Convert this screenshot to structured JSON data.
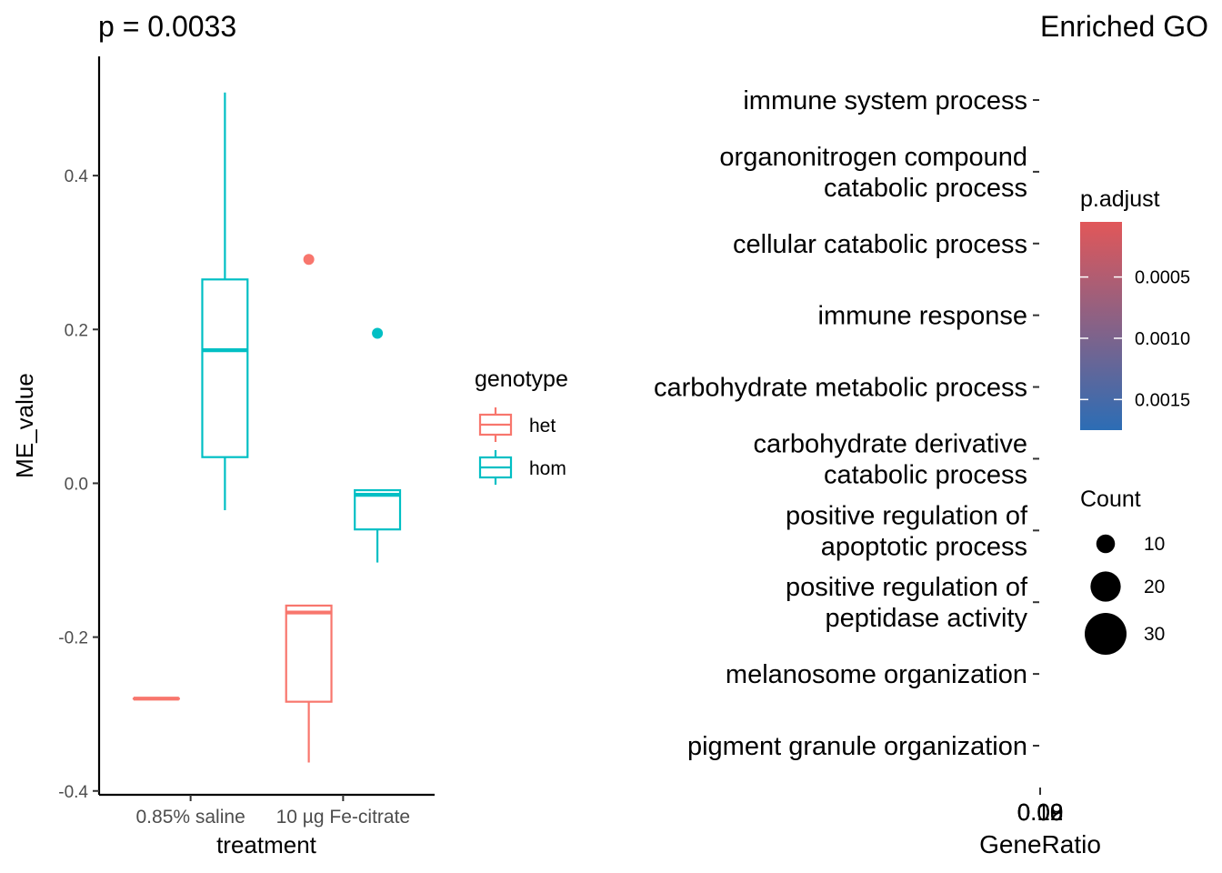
{
  "chart_data": [
    {
      "type": "boxplot",
      "title": "p = 0.0033",
      "xlabel": "treatment",
      "ylabel": "ME_value",
      "categories": [
        "0.85% saline",
        "10 µg Fe-citrate"
      ],
      "ylim": [
        -0.405,
        0.555
      ],
      "yticks": [
        -0.4,
        -0.2,
        0.0,
        0.2,
        0.4
      ],
      "ytick_labels": [
        "-0.4",
        "-0.2",
        "0.0",
        "0.2",
        "0.4"
      ],
      "legend": {
        "title": "genotype",
        "position": "right",
        "entries": [
          {
            "label": "het",
            "color": "#F8766D"
          },
          {
            "label": "hom",
            "color": "#00BFC4"
          }
        ]
      },
      "series": [
        {
          "name": "het",
          "color": "#F8766D",
          "boxes": [
            {
              "category": "0.85% saline",
              "min": -0.28,
              "q1": -0.28,
              "median": -0.28,
              "q3": -0.28,
              "max": -0.28,
              "outliers": []
            },
            {
              "category": "10 µg Fe-citrate",
              "min": -0.363,
              "q1": -0.284,
              "median": -0.168,
              "q3": -0.159,
              "max": -0.159,
              "outliers": [
                0.291
              ]
            }
          ]
        },
        {
          "name": "hom",
          "color": "#00BFC4",
          "boxes": [
            {
              "category": "0.85% saline",
              "min": -0.035,
              "q1": 0.034,
              "median": 0.173,
              "q3": 0.265,
              "max": 0.508,
              "outliers": []
            },
            {
              "category": "10 µg Fe-citrate",
              "min": -0.103,
              "q1": -0.06,
              "median": -0.015,
              "q3": -0.009,
              "max": -0.009,
              "outliers": [
                0.195
              ]
            }
          ]
        }
      ]
    },
    {
      "type": "dotplot",
      "title": "Enriched GO",
      "xlabel": "GeneRatio",
      "xtick_labels": [
        "0.02",
        "0.08",
        "0.09",
        "0.10"
      ],
      "terms": [
        "immune system process",
        "organonitrogen compound\ncatabolic process",
        "cellular catabolic process",
        "immune response",
        "carbohydrate metabolic process",
        "carbohydrate derivative\ncatabolic process",
        "positive regulation of\napoptotic process",
        "positive regulation of\npeptidase activity",
        "melanosome organization",
        "pigment granule organization"
      ],
      "color_legend": {
        "title": "p.adjust",
        "low_color": "#E15759",
        "high_color": "#2C6DB5",
        "ticks": [
          0.0005,
          0.001,
          0.0015
        ],
        "tick_labels": [
          "0.0005",
          "0.0010",
          "0.0015"
        ],
        "range": [
          5e-05,
          0.00175
        ]
      },
      "size_legend": {
        "title": "Count",
        "values": [
          10,
          20,
          30
        ],
        "labels": [
          "10",
          "20",
          "30"
        ]
      }
    }
  ]
}
